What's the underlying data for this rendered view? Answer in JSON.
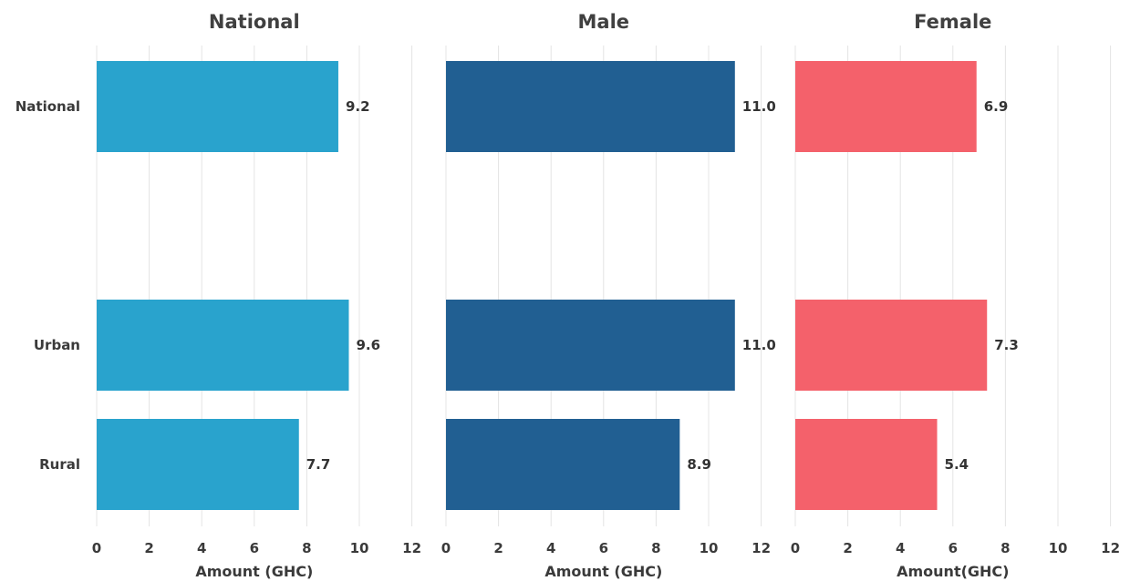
{
  "chart_data": {
    "type": "bar",
    "orientation": "horizontal",
    "categories": [
      "National",
      "Urban",
      "Rural"
    ],
    "xlim": [
      0,
      12
    ],
    "xticks": [
      0,
      2,
      4,
      6,
      8,
      10,
      12
    ],
    "grid": true,
    "panels": [
      {
        "title": "National",
        "xlabel": "Amount (GHC)",
        "color": "#29A3CD",
        "values": [
          9.2,
          9.6,
          7.7
        ],
        "labels": [
          "9.2",
          "9.6",
          "7.7"
        ]
      },
      {
        "title": "Male",
        "xlabel": "Amount (GHC)",
        "color": "#215F92",
        "values": [
          11.0,
          11.0,
          8.9
        ],
        "labels": [
          "11.0",
          "11.0",
          "8.9"
        ]
      },
      {
        "title": "Female",
        "xlabel": "Amount(GHC)",
        "color": "#F4616B",
        "values": [
          6.9,
          7.3,
          5.4
        ],
        "labels": [
          "6.9",
          "7.3",
          "5.4"
        ]
      }
    ]
  }
}
